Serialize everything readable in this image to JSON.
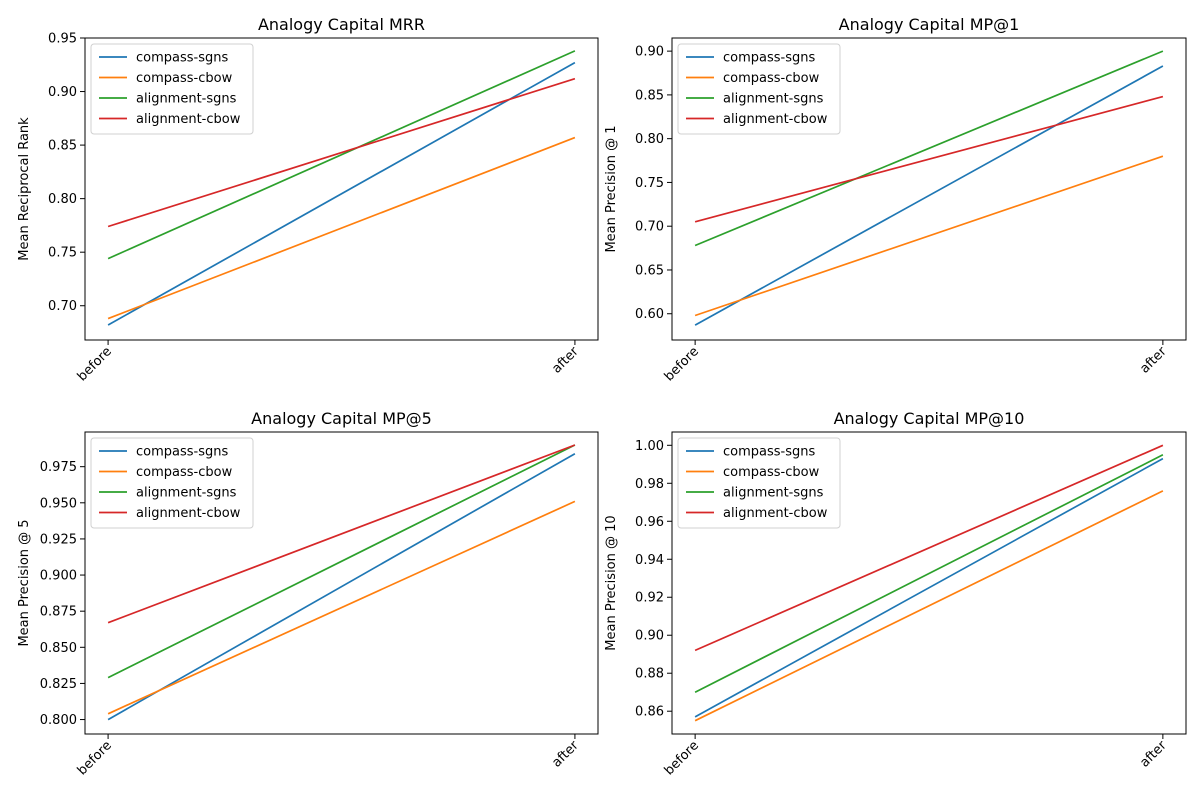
{
  "colors": {
    "compass-sgns": "#1f77b4",
    "compass-cbow": "#ff7f0e",
    "alignment-sgns": "#2ca02c",
    "alignment-cbow": "#d62728"
  },
  "chart_data": [
    {
      "type": "line",
      "title": "Analogy Capital MRR",
      "xlabel": "",
      "ylabel": "Mean Reciprocal Rank",
      "categories": [
        "before",
        "after"
      ],
      "ylim": [
        0.668,
        0.95
      ],
      "yticks": [
        0.7,
        0.75,
        0.8,
        0.85,
        0.9,
        0.95
      ],
      "ytick_labels": [
        "0.70",
        "0.75",
        "0.80",
        "0.85",
        "0.90",
        "0.95"
      ],
      "legend": "upper-left",
      "series": [
        {
          "name": "compass-sgns",
          "values": [
            0.682,
            0.927
          ]
        },
        {
          "name": "compass-cbow",
          "values": [
            0.688,
            0.857
          ]
        },
        {
          "name": "alignment-sgns",
          "values": [
            0.744,
            0.938
          ]
        },
        {
          "name": "alignment-cbow",
          "values": [
            0.774,
            0.912
          ]
        }
      ]
    },
    {
      "type": "line",
      "title": "Analogy Capital MP@1",
      "xlabel": "",
      "ylabel": "Mean Precision @ 1",
      "categories": [
        "before",
        "after"
      ],
      "ylim": [
        0.57,
        0.915
      ],
      "yticks": [
        0.6,
        0.65,
        0.7,
        0.75,
        0.8,
        0.85,
        0.9
      ],
      "ytick_labels": [
        "0.60",
        "0.65",
        "0.70",
        "0.75",
        "0.80",
        "0.85",
        "0.90"
      ],
      "legend": "upper-left",
      "series": [
        {
          "name": "compass-sgns",
          "values": [
            0.587,
            0.883
          ]
        },
        {
          "name": "compass-cbow",
          "values": [
            0.598,
            0.78
          ]
        },
        {
          "name": "alignment-sgns",
          "values": [
            0.678,
            0.9
          ]
        },
        {
          "name": "alignment-cbow",
          "values": [
            0.705,
            0.848
          ]
        }
      ]
    },
    {
      "type": "line",
      "title": "Analogy Capital MP@5",
      "xlabel": "",
      "ylabel": "Mean Precision @ 5",
      "categories": [
        "before",
        "after"
      ],
      "ylim": [
        0.79,
        0.999
      ],
      "yticks": [
        0.8,
        0.825,
        0.85,
        0.875,
        0.9,
        0.925,
        0.95,
        0.975
      ],
      "ytick_labels": [
        "0.800",
        "0.825",
        "0.850",
        "0.875",
        "0.900",
        "0.925",
        "0.950",
        "0.975"
      ],
      "legend": "upper-left",
      "series": [
        {
          "name": "compass-sgns",
          "values": [
            0.8,
            0.984
          ]
        },
        {
          "name": "compass-cbow",
          "values": [
            0.804,
            0.951
          ]
        },
        {
          "name": "alignment-sgns",
          "values": [
            0.829,
            0.99
          ]
        },
        {
          "name": "alignment-cbow",
          "values": [
            0.867,
            0.99
          ]
        }
      ]
    },
    {
      "type": "line",
      "title": "Analogy Capital MP@10",
      "xlabel": "",
      "ylabel": "Mean Precision @ 10",
      "categories": [
        "before",
        "after"
      ],
      "ylim": [
        0.848,
        1.007
      ],
      "yticks": [
        0.86,
        0.88,
        0.9,
        0.92,
        0.94,
        0.96,
        0.98,
        1.0
      ],
      "ytick_labels": [
        "0.86",
        "0.88",
        "0.90",
        "0.92",
        "0.94",
        "0.96",
        "0.98",
        "1.00"
      ],
      "legend": "upper-left",
      "series": [
        {
          "name": "compass-sgns",
          "values": [
            0.857,
            0.993
          ]
        },
        {
          "name": "compass-cbow",
          "values": [
            0.855,
            0.976
          ]
        },
        {
          "name": "alignment-sgns",
          "values": [
            0.87,
            0.995
          ]
        },
        {
          "name": "alignment-cbow",
          "values": [
            0.892,
            1.0
          ]
        }
      ]
    }
  ]
}
